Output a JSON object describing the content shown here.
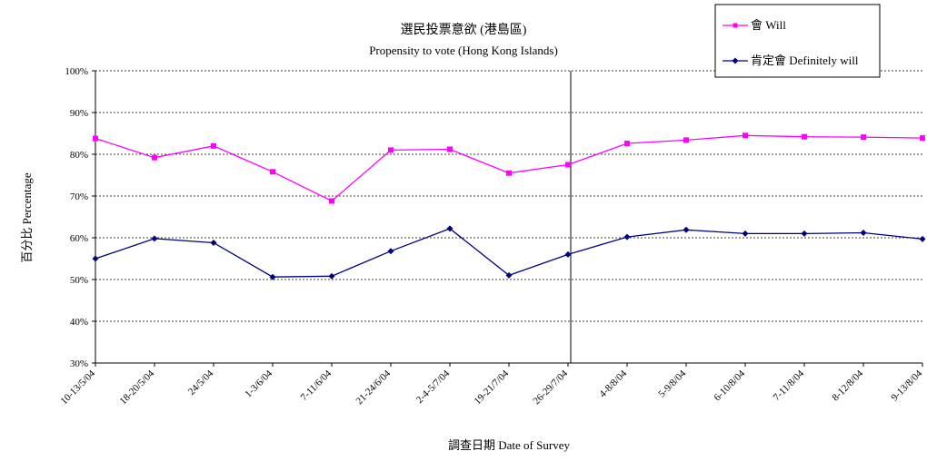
{
  "chart_data": {
    "type": "line",
    "title": "選民投票意欲 (港島區)",
    "subtitle": "Propensity to vote (Hong Kong Islands)",
    "xlabel": "調查日期 Date of Survey",
    "ylabel": "百分比 Percentage",
    "ylim": [
      30,
      100
    ],
    "ytick_step": 10,
    "ytick_suffix": "%",
    "grid": "horizontal-dashed",
    "legend_position": "top-right",
    "divider_after_index": 8,
    "categories": [
      "10-13/5/04",
      "18-20/5/04",
      "24/5/04",
      "1-3/6/04",
      "7-11/6/04",
      "21-24/6/04",
      "2-4-5/7/04",
      "19-21/7/04",
      "26-29/7/04",
      "4-8/8/04",
      "5-9/8/04",
      "6-10/8/04",
      "7-11/8/04",
      "8-12/8/04",
      "9-13/8/04"
    ],
    "series": [
      {
        "name": "會 Will",
        "color": "#ff00ff",
        "marker": "square",
        "values": [
          83.8,
          79.2,
          82.0,
          75.8,
          68.8,
          81.0,
          81.2,
          75.5,
          77.5,
          82.6,
          83.4,
          84.5,
          84.2,
          84.1,
          83.9
        ]
      },
      {
        "name": "肯定會 Definitely will",
        "color": "#000080",
        "marker": "diamond",
        "values": [
          55.0,
          59.8,
          58.8,
          50.6,
          50.8,
          56.8,
          62.2,
          51.0,
          56.0,
          60.2,
          61.9,
          61.0,
          61.0,
          61.2,
          59.7
        ]
      }
    ]
  }
}
